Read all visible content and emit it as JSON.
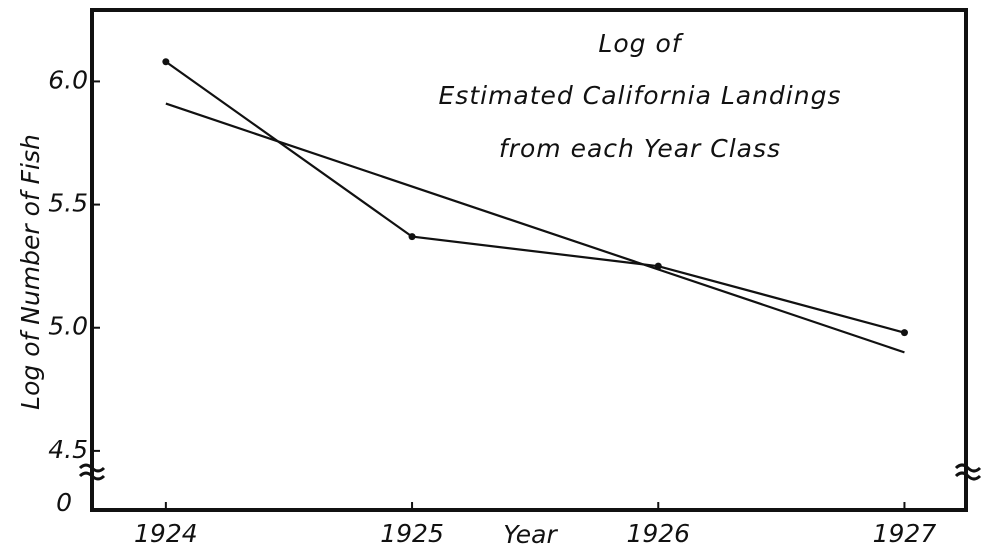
{
  "chart_data": {
    "type": "line",
    "title": [
      "Log of",
      "Estimated California Landings",
      "from each Year Class"
    ],
    "x_label": "Year",
    "y_label": "Log of Number of Fish",
    "origin_label": "0",
    "xlim": [
      1923.7,
      1927.25
    ],
    "xticks": [
      1924,
      1925,
      1926,
      1927
    ],
    "ylim": [
      4.26,
      6.29
    ],
    "yticks": [
      4.5,
      {
        "value": 5.0,
        "label": "5.0"
      },
      5.5,
      {
        "value": 6.0,
        "label": "6.0"
      }
    ],
    "series": [
      {
        "x": [
          1924,
          1925,
          1926,
          1927
        ],
        "values": [
          6.08,
          5.37,
          5.25,
          4.98
        ],
        "color": "#111",
        "markers": true
      },
      {
        "x": [
          1924,
          1927
        ],
        "values": [
          5.91,
          4.9
        ],
        "color": "#111",
        "markers": false
      }
    ]
  }
}
